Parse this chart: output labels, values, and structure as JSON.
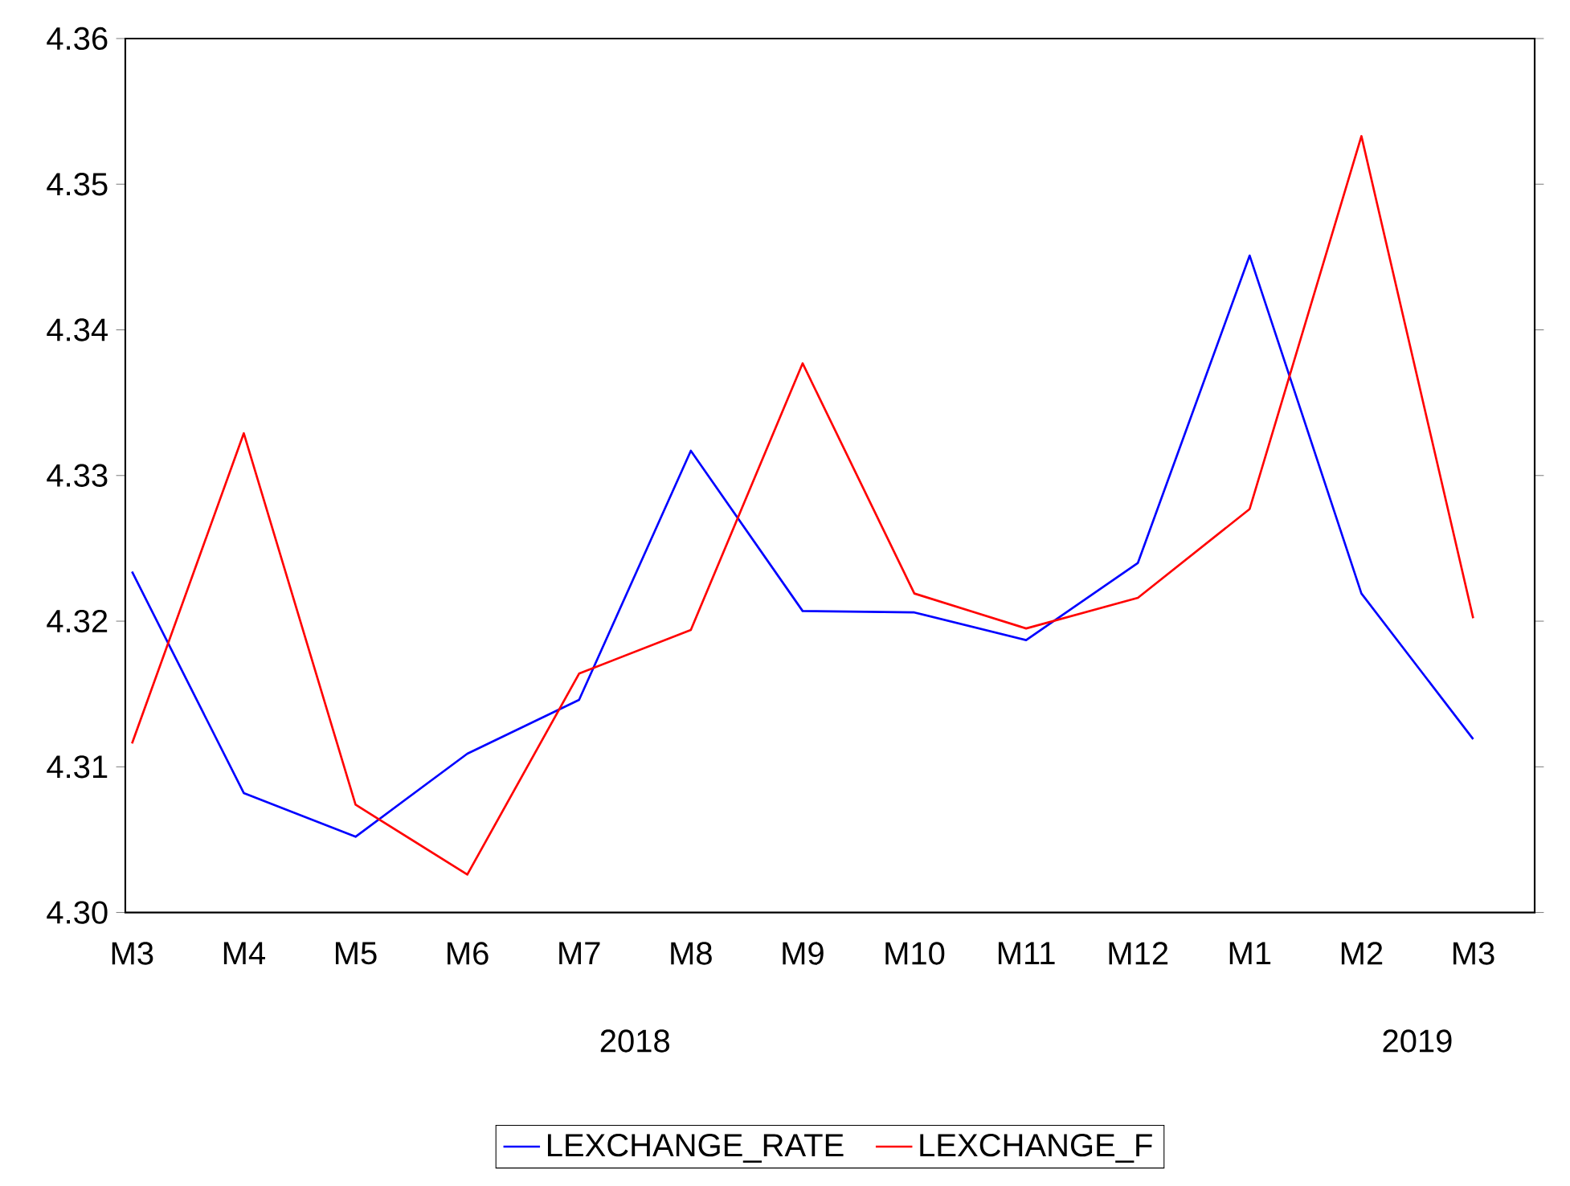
{
  "chart_data": {
    "type": "line",
    "categories": [
      "M3",
      "M4",
      "M5",
      "M6",
      "M7",
      "M8",
      "M9",
      "M10",
      "M11",
      "M12",
      "M1",
      "M2",
      "M3"
    ],
    "series": [
      {
        "name": "LEXCHANGE_RATE",
        "color": "#0000ff",
        "values": [
          4.3234,
          4.3082,
          4.3052,
          4.3109,
          4.3146,
          4.3317,
          4.3207,
          4.3206,
          4.3187,
          4.324,
          4.3451,
          4.3219,
          4.3119
        ]
      },
      {
        "name": "LEXCHANGE_F",
        "color": "#ff0000",
        "values": [
          4.3116,
          4.3329,
          4.3074,
          4.3026,
          4.3164,
          4.3194,
          4.3377,
          4.3219,
          4.3195,
          4.3216,
          4.3277,
          4.3533,
          4.3202
        ]
      }
    ],
    "annotations": [
      "2018",
      "2019"
    ],
    "ylim": [
      4.3,
      4.36
    ],
    "yticks": [
      {
        "value": 4.3,
        "label": "4.30"
      },
      {
        "value": 4.31,
        "label": "4.31"
      },
      {
        "value": 4.32,
        "label": "4.32"
      },
      {
        "value": 4.33,
        "label": "4.33"
      },
      {
        "value": 4.34,
        "label": "4.34"
      },
      {
        "value": 4.35,
        "label": "4.35"
      },
      {
        "value": 4.36,
        "label": "4.36"
      }
    ],
    "grid": false,
    "legend": "bottom",
    "line_style": "solid"
  }
}
